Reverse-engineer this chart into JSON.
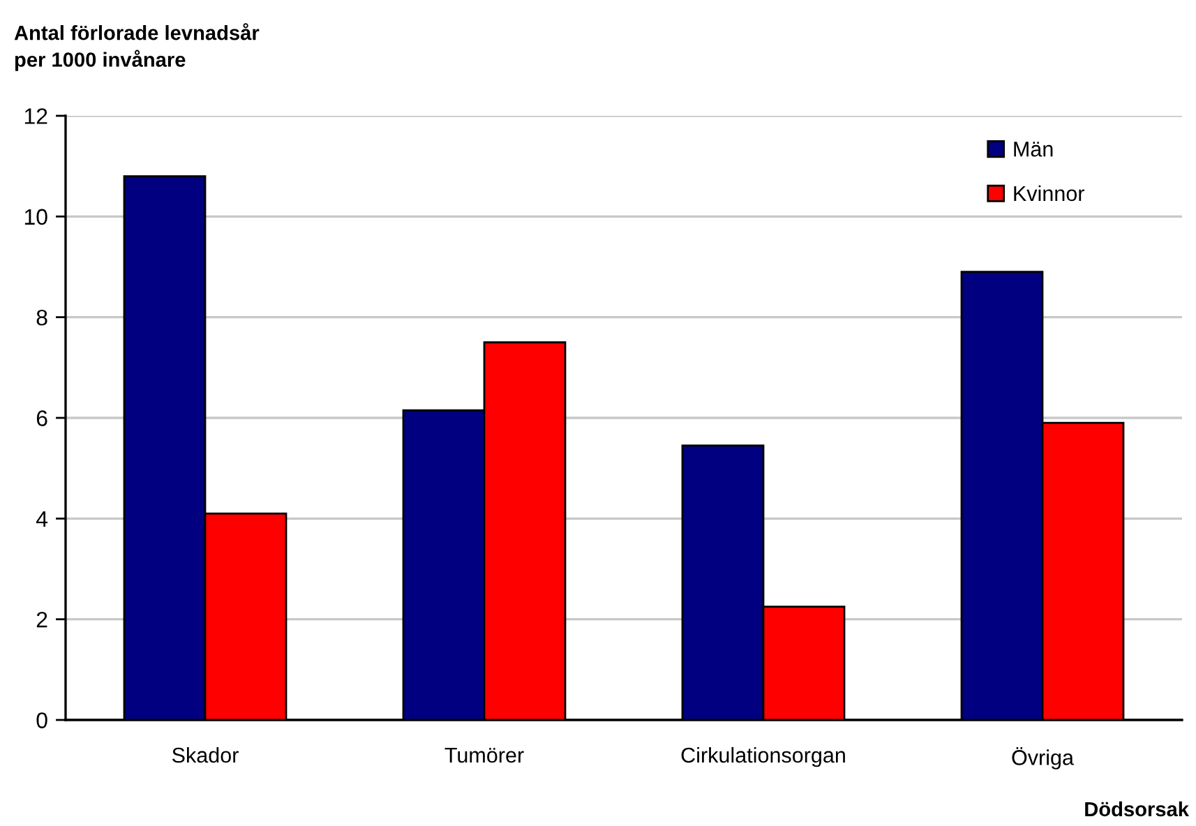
{
  "chart_data": {
    "type": "bar",
    "ylabel": "Antal förlorade levnadsår\nper 1000 invånare",
    "xlabel": "Dödsorsak",
    "categories": [
      "Skador",
      "Tumörer",
      "Cirkulationsorgan",
      "Övriga"
    ],
    "series": [
      {
        "name": "Män",
        "color": "#000080",
        "values": [
          10.8,
          6.15,
          5.45,
          8.9
        ]
      },
      {
        "name": "Kvinnor",
        "color": "#ff0000",
        "values": [
          4.1,
          7.5,
          2.25,
          5.9
        ]
      }
    ],
    "ylim": [
      0,
      12
    ],
    "yticks": [
      0,
      2,
      4,
      6,
      8,
      10,
      12
    ],
    "grid": "y",
    "legend": "top right"
  }
}
